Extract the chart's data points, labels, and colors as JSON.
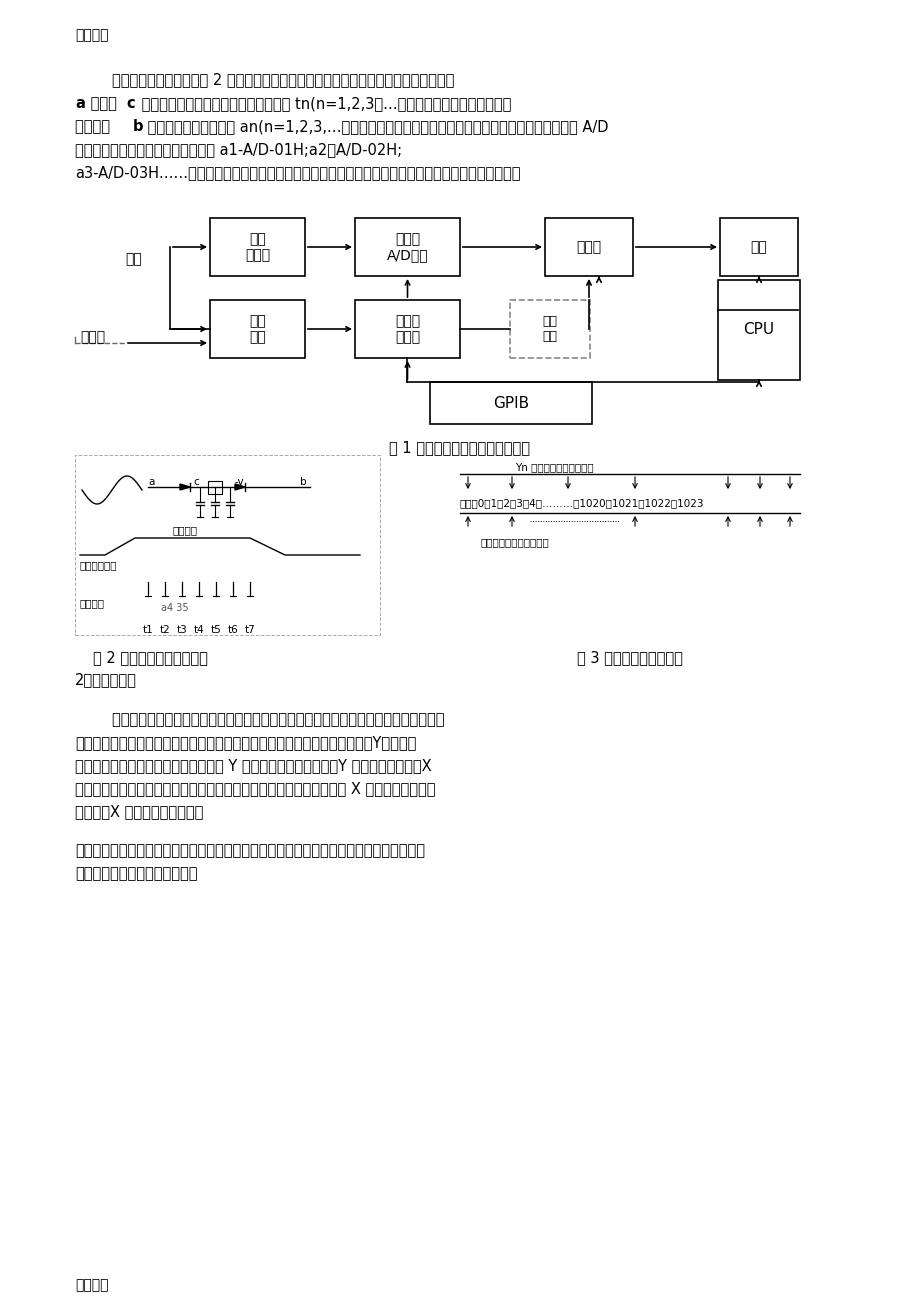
{
  "bg_color": "#ffffff",
  "text_color": "#000000",
  "header_footer": "精品文档",
  "para1": "        连续信号离散化通过如图 2 所示的取样方法完成，把模拟波形送到加有反偏的取样门的",
  "para1b": "a 点，在 c 点加入等间隔的取样脉冲，则对应时间 tn(n=1,2,3，…），取样脉冲打开取样门的一",
  "para2": "瞬间，在 b 点就得到相应的模拟量 an(n=1,2,3,…），这个模拟量就是离散化了的模拟量，把每一个模拟量进行 A/D",
  "para3": "转换，就可以得到相应的数字量，如 a1-A/D-01H;a2－A/D-02H;",
  "para4": "a3-A/D-03H……。如果把这些数字量按序存放在存储器中就相当于把一幅模拟波形以数字量存储起来。",
  "fig1_caption": "图 1 典型数字存储示波器原理框图",
  "fig2_caption": "图 2 连续模拟波形的离散化",
  "fig3_caption": "图 3 双踪显示的存储方式",
  "section2_title": "2．波形的显示",
  "para5": "        数字存储示波器必须把上面存储器中的波形显示出来以便用户进行观察、处理和测量。",
  "para6": "存储器中每个单元存储了一个抽样点的信息，在显示屏上显示为一个点，该点Y方向的坐",
  "para7": "标值决定于数字信号值的大小、示波器 Y 方向电压灵敏度设定值、Y 方向整体偏移量，X",
  "para8": "方向的坐标值决定于数字信号值在存储器中的位置（即地址）、示波器 X 方向电压灵敏度的",
  "para9": "设定值、X 方向的整体偏移量。",
  "para10": "为了适应对不同波形的观测、智能化的数字存储器有多种灵活的显示方式：存储显示、双踪",
  "para11": "显示、插值显示、流动显示等。",
  "box1": "放大\n与衰减",
  "box2": "取样与\nA/D转换",
  "box3": "存储器",
  "box4": "显示",
  "box5": "触发\n电路",
  "box6": "逻辑控\n制电路",
  "box7": "控制\n地址",
  "box8": "CPU",
  "box9": "GPIB",
  "label_input": "输入",
  "label_ext": "外触发",
  "fig2_label1": "取样脉冲",
  "fig2_label2": "连续模拟波形",
  "fig2_label3": "即样脉冲",
  "fig2_label4": "a4 35",
  "fig2_time": [
    "t1",
    "t2",
    "t3",
    "t4",
    "t5",
    "t6",
    "t7"
  ],
  "fig2_points": [
    "a",
    "c",
    "-v",
    "b"
  ],
  "fig3_label1": "Yn 数然工存入奇数单元）",
  "fig3_addr": "地址：0，1，2，3，4，………，1020，1021，1022，1023",
  "fig3_label2": "也数据（存入保数单元）"
}
